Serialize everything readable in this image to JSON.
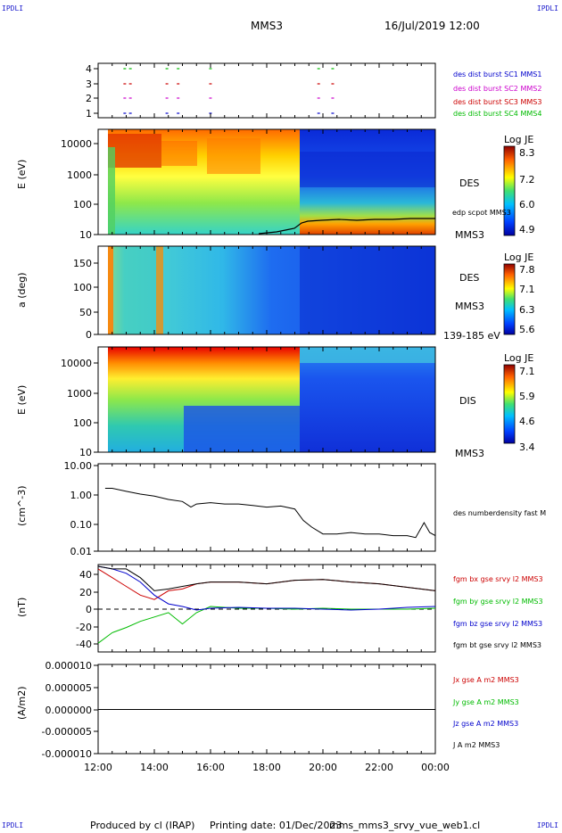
{
  "header": {
    "corner_tl": "IPDLI",
    "corner_tr": "IPDLI",
    "corner_bl": "IPDLI",
    "corner_br": "IPDLI",
    "title": "MMS3",
    "date": "16/Jul/2019 12:00"
  },
  "footer": {
    "produced_by": "Produced by cl (IRAP)",
    "printing_date": "Printing date: 01/Dec/2023",
    "filename": "mms_mms3_srvy_vue_web1.cl"
  },
  "colors": {
    "blue": "#0000cc",
    "magenta": "#cc00cc",
    "red": "#cc0000",
    "green": "#00bb00",
    "black": "#000000"
  },
  "time_axis": {
    "tick_labels": [
      "12:00",
      "14:00",
      "16:00",
      "18:00",
      "20:00",
      "22:00",
      "00:00"
    ],
    "range_hours": [
      12,
      24
    ]
  },
  "panels": {
    "burst": {
      "yticks": [
        "4",
        "3",
        "2",
        "1"
      ],
      "legend": [
        {
          "label": "des dist burst SC1 MMS1",
          "color": "#0000cc"
        },
        {
          "label": "des dist burst SC2 MMS2",
          "color": "#cc00cc"
        },
        {
          "label": "des dist burst SC3 MMS3",
          "color": "#cc0000"
        },
        {
          "label": "des dist burst SC4 MMS4",
          "color": "#00bb00"
        }
      ]
    },
    "des_energy": {
      "ylabel": "E (eV)",
      "yticks": [
        "10000",
        "1000",
        "100",
        "10"
      ],
      "instrument": "DES",
      "overlay_label": "edp scpot MMS3",
      "sc_label": "MMS3",
      "colorbar": {
        "title": "Log JE",
        "ticks": [
          "8.3",
          "7.2",
          "6.0",
          "4.9"
        ]
      }
    },
    "des_pitch": {
      "ylabel": "a (deg)",
      "yticks": [
        "150",
        "100",
        "50",
        "0"
      ],
      "instrument": "DES",
      "sc_label": "MMS3",
      "range_label": "139-185 eV",
      "colorbar": {
        "title": "Log JE",
        "ticks": [
          "7.8",
          "7.1",
          "6.3",
          "5.6"
        ]
      }
    },
    "dis_energy": {
      "ylabel": "E (eV)",
      "yticks": [
        "10000",
        "1000",
        "100",
        "10"
      ],
      "instrument": "DIS",
      "sc_label": "MMS3",
      "colorbar": {
        "title": "Log JE",
        "ticks": [
          "7.1",
          "5.9",
          "4.6",
          "3.4"
        ]
      }
    },
    "density": {
      "ylabel": "(cm^-3)",
      "yticks": [
        "10.00",
        "1.00",
        "0.10",
        "0.01"
      ],
      "legend": "des numberdensity fast M"
    },
    "field": {
      "ylabel": "(nT)",
      "yticks": [
        "40",
        "20",
        "0",
        "-20",
        "-40"
      ],
      "legend": [
        {
          "label": "fgm bx gse srvy l2 MMS3",
          "color": "#cc0000"
        },
        {
          "label": "fgm by gse srvy l2 MMS3",
          "color": "#00bb00"
        },
        {
          "label": "fgm bz gse srvy l2 MMS3",
          "color": "#0000cc"
        },
        {
          "label": "fgm bt gse srvy l2 MMS3",
          "color": "#000000"
        }
      ]
    },
    "current": {
      "ylabel": "(A/m2)",
      "yticks": [
        "0.000010",
        "0.000005",
        "0.000000",
        "-0.000005",
        "-0.000010"
      ],
      "legend": [
        {
          "label": "Jx gse A m2 MMS3",
          "color": "#cc0000"
        },
        {
          "label": "Jy gse A m2 MMS3",
          "color": "#00bb00"
        },
        {
          "label": "Jz gse A m2 MMS3",
          "color": "#0000cc"
        },
        {
          "label": "J A m2 MMS3",
          "color": "#000000"
        }
      ]
    }
  },
  "chart_data": [
    {
      "type": "line",
      "name": "des numberdensity fast M",
      "x_hours": [
        12.25,
        12.5,
        13.0,
        13.5,
        14.0,
        14.5,
        15.0,
        15.3,
        15.5,
        16.0,
        16.5,
        17.0,
        17.5,
        18.0,
        18.5,
        19.0,
        19.3,
        19.6,
        20.0,
        20.5,
        21.0,
        21.5,
        22.0,
        22.5,
        23.0,
        23.3,
        23.6,
        23.8,
        24.0
      ],
      "y": [
        1.6,
        1.6,
        1.25,
        1.0,
        0.85,
        0.65,
        0.55,
        0.35,
        0.45,
        0.5,
        0.45,
        0.45,
        0.4,
        0.35,
        0.38,
        0.3,
        0.12,
        0.07,
        0.04,
        0.04,
        0.045,
        0.04,
        0.04,
        0.035,
        0.035,
        0.03,
        0.1,
        0.045,
        0.035
      ],
      "ylim": [
        0.01,
        10
      ],
      "yscale": "log"
    },
    {
      "type": "line",
      "series": [
        {
          "name": "fgm bx gse srvy l2 MMS3",
          "color": "#cc0000",
          "x_hours": [
            12.0,
            12.5,
            13.0,
            13.5,
            14.0,
            14.5,
            15.0,
            15.5,
            16.0,
            17.0,
            18.0,
            19.0,
            20.0,
            21.0,
            22.0,
            23.0,
            24.0
          ],
          "y": [
            45,
            35,
            25,
            15,
            10,
            20,
            22,
            28,
            30,
            30,
            28,
            32,
            33,
            30,
            28,
            24,
            20
          ]
        },
        {
          "name": "fgm by gse srvy l2 MMS3",
          "color": "#00bb00",
          "x_hours": [
            12.0,
            12.5,
            13.0,
            13.5,
            14.0,
            14.5,
            15.0,
            15.5,
            16.0,
            17.0,
            18.0,
            19.0,
            20.0,
            21.0,
            22.0,
            23.0,
            24.0
          ],
          "y": [
            -40,
            -28,
            -22,
            -15,
            -10,
            -5,
            -18,
            -5,
            2,
            0,
            0,
            -1,
            0,
            -1,
            -1,
            -1,
            0
          ]
        },
        {
          "name": "fgm bz gse srvy l2 MMS3",
          "color": "#0000cc",
          "x_hours": [
            12.0,
            12.5,
            13.0,
            13.5,
            14.0,
            14.5,
            15.0,
            15.5,
            16.0,
            17.0,
            18.0,
            19.0,
            20.0,
            21.0,
            22.0,
            23.0,
            24.0
          ],
          "y": [
            48,
            45,
            40,
            30,
            15,
            5,
            2,
            -2,
            0,
            1,
            0,
            0,
            -1,
            -2,
            -1,
            1,
            2
          ]
        },
        {
          "name": "fgm bt gse srvy l2 MMS3",
          "color": "#000000",
          "x_hours": [
            12.0,
            12.5,
            13.0,
            13.5,
            14.0,
            14.5,
            15.0,
            15.5,
            16.0,
            17.0,
            18.0,
            19.0,
            20.0,
            21.0,
            22.0,
            23.0,
            24.0
          ],
          "y": [
            48,
            45,
            45,
            35,
            20,
            22,
            25,
            28,
            30,
            30,
            28,
            32,
            33,
            30,
            28,
            24,
            20
          ]
        }
      ],
      "ylim": [
        -50,
        50
      ]
    },
    {
      "type": "line",
      "series": [
        {
          "name": "J A m2 MMS3",
          "color": "#000000",
          "x_hours": [
            12.0,
            24.0
          ],
          "y": [
            0,
            0
          ]
        }
      ],
      "ylim": [
        -1e-05,
        1e-05
      ]
    }
  ]
}
